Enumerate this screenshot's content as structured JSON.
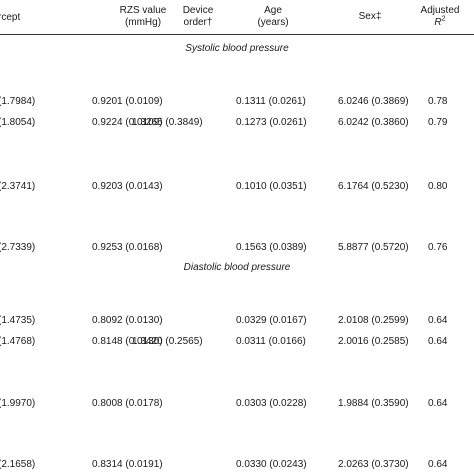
{
  "headers": {
    "intercept": "rcept",
    "rzs": [
      "RZS value",
      "(mmHg)"
    ],
    "device": [
      "Device",
      "order†"
    ],
    "age": [
      "Age",
      "(years)"
    ],
    "sex": "Sex‡",
    "r2_line1": "Adjusted",
    "r2_var": "R",
    "r2_sup": "2"
  },
  "sections": [
    {
      "title": "Systolic blood pressure",
      "rows": [
        {
          "intercept": "(1.7984)",
          "rzs": "0.9201 (0.0109)",
          "device": "",
          "age": "0.1311 (0.0261)",
          "sex": "6.0246 (0.3869)",
          "r2": "0.78"
        },
        {
          "intercept": "(1.8054)",
          "rzs": "0.9224 (0.0109)",
          "device": "1.3265 (0.3849)",
          "age": "0.1273 (0.0261)",
          "sex": "6.0242 (0.3860)",
          "r2": "0.79"
        },
        {
          "intercept": "(2.3741)",
          "rzs": "0.9203 (0.0143)",
          "device": "",
          "age": "0.1010 (0.0351)",
          "sex": "6.1764 (0.5230)",
          "r2": "0.80"
        },
        {
          "intercept": "(2.7339)",
          "rzs": "0.9253 (0.0168)",
          "device": "",
          "age": "0.1563 (0.0389)",
          "sex": "5.8877 (0.5720)",
          "r2": "0.76"
        }
      ]
    },
    {
      "title": "Diastolic blood pressure",
      "rows": [
        {
          "intercept": "(1.4735)",
          "rzs": "0.8092 (0.0130)",
          "device": "",
          "age": "0.0329 (0.0167)",
          "sex": "2.0108 (0.2599)",
          "r2": "0.64"
        },
        {
          "intercept": "(1.4768)",
          "rzs": "0.8148 (0.0130)",
          "device": "1.3420 (0.2565)",
          "age": "0.0311 (0.0166)",
          "sex": "2.0016 (0.2585)",
          "r2": "0.64"
        },
        {
          "intercept": "(1.9970)",
          "rzs": "0.8008 (0.0178)",
          "device": "",
          "age": "0.0303 (0.0228)",
          "sex": "1.9884 (0.3590)",
          "r2": "0.64"
        },
        {
          "intercept": "(2.1658)",
          "rzs": "0.8314 (0.0191)",
          "device": "",
          "age": "0.0330 (0.0243)",
          "sex": "2.0263 (0.3730)",
          "r2": "0.64"
        }
      ]
    }
  ]
}
